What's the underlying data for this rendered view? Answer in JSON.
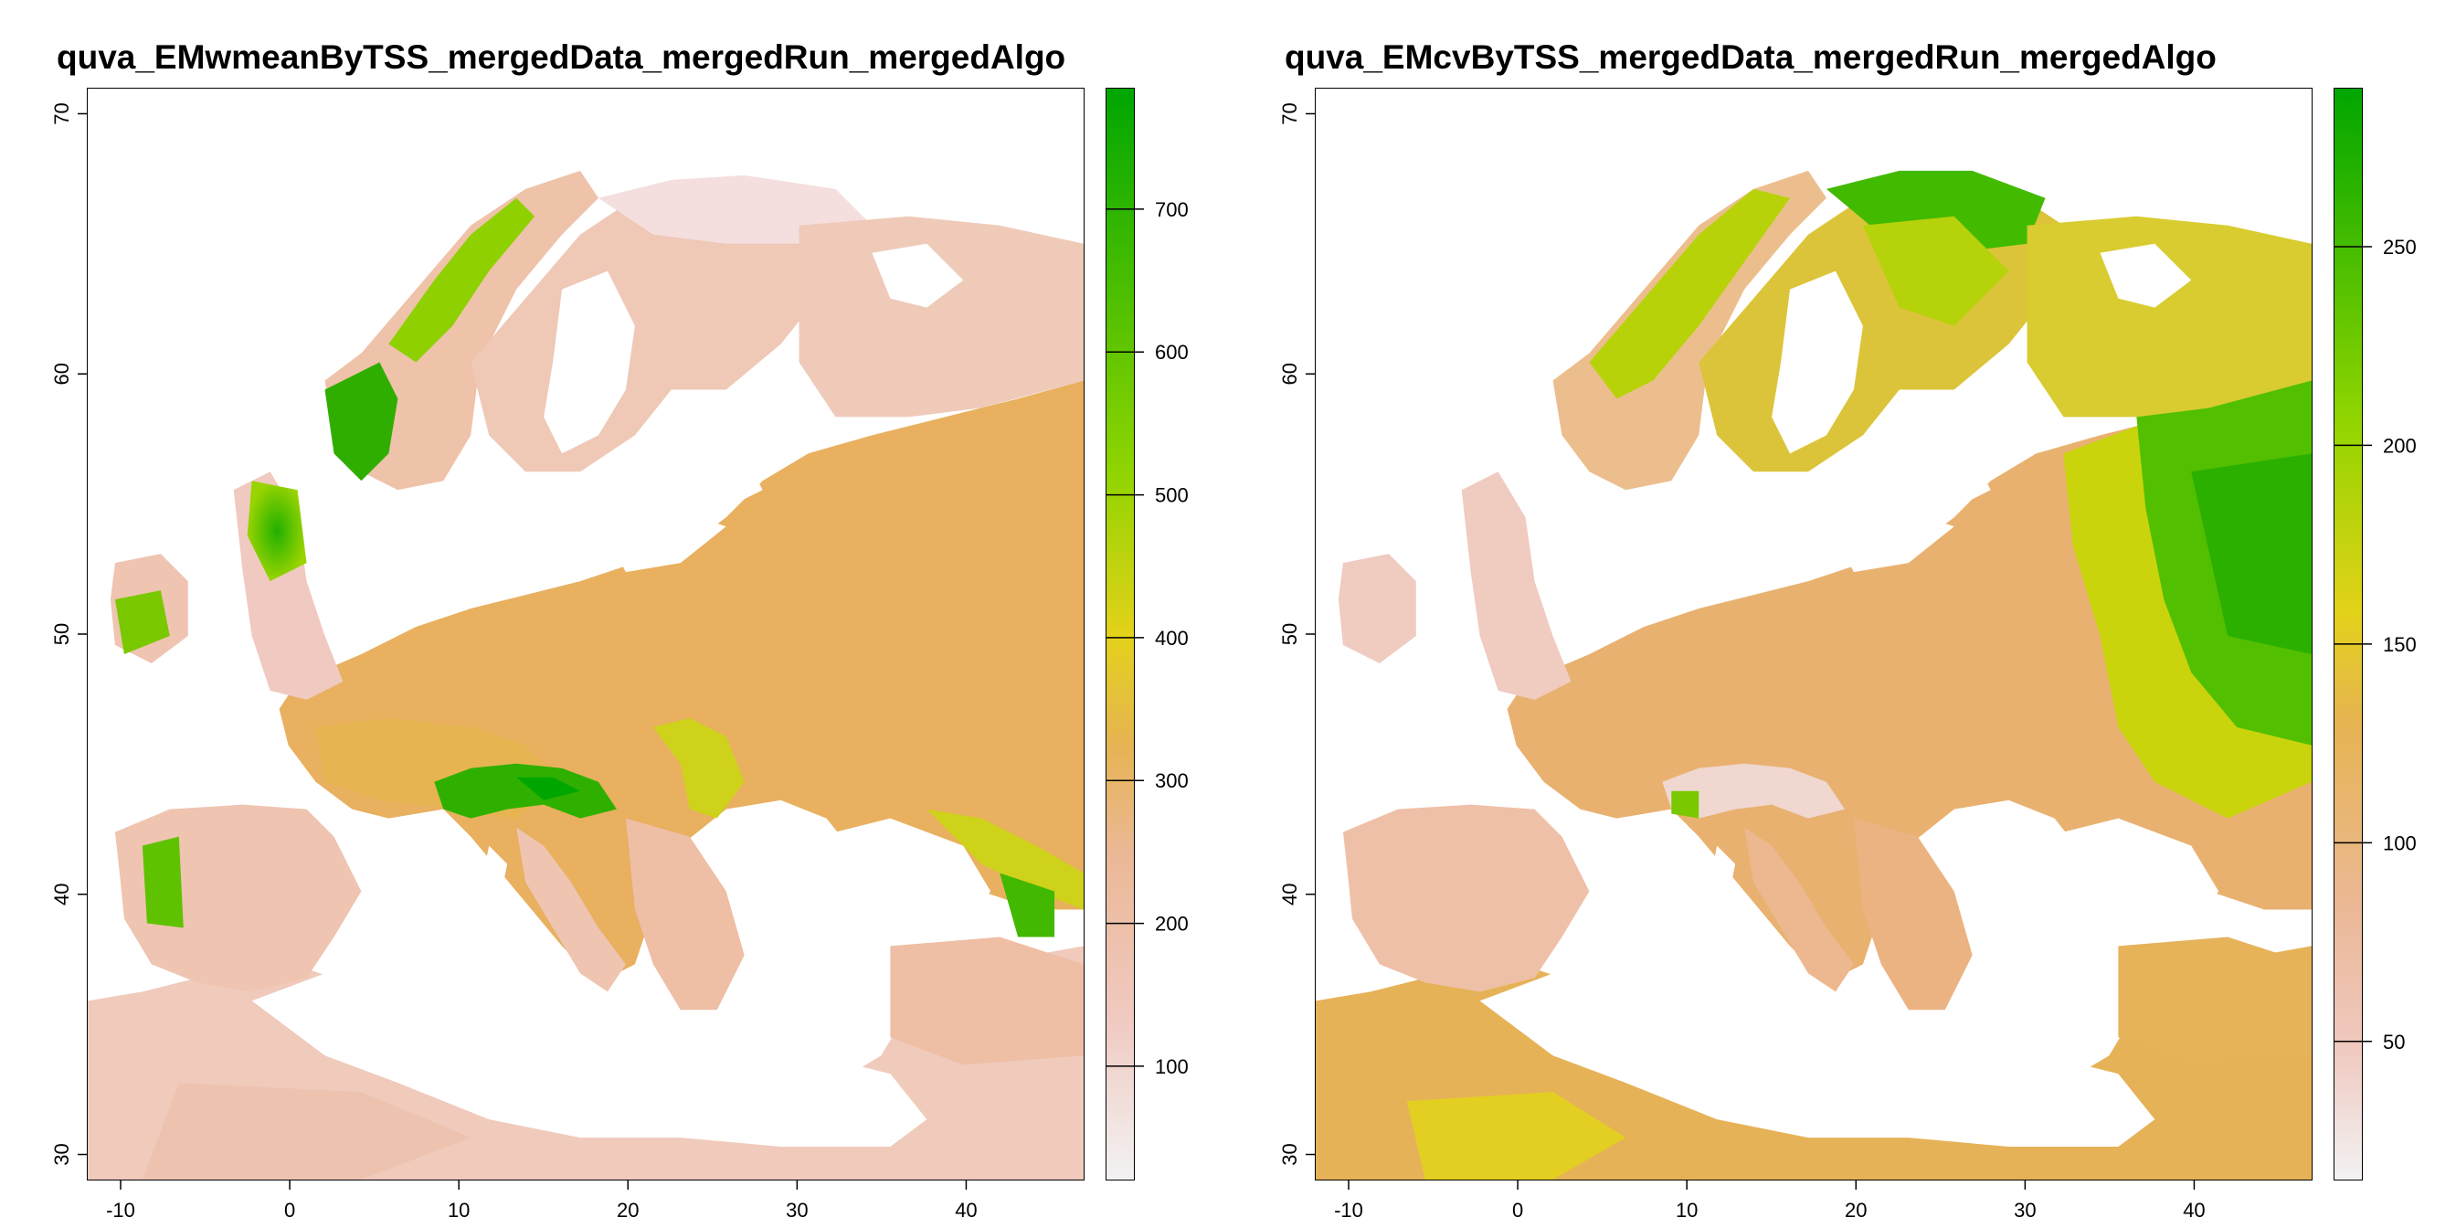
{
  "maps": [
    {
      "title": "quva_EMwmeanByTSS_mergedData_mergedRun_mergedAlgo",
      "x_axis": {
        "ticks": [
          -10,
          0,
          10,
          20,
          30,
          40
        ],
        "range": [
          -12,
          47
        ]
      },
      "y_axis": {
        "ticks": [
          30,
          40,
          50,
          60,
          70
        ],
        "range": [
          29,
          71
        ]
      },
      "legend": {
        "ticks": [
          100,
          200,
          300,
          400,
          500,
          600,
          700
        ],
        "range": [
          20,
          785
        ]
      },
      "color_scale": [
        "#f2f2f2",
        "#f0c9c0",
        "#ebb896",
        "#e6b451",
        "#e3d21a",
        "#8fd400",
        "#00a600"
      ],
      "land_fill": "#efb89e"
    },
    {
      "title": "quva_EMcvByTSS_mergedData_mergedRun_mergedAlgo",
      "x_axis": {
        "ticks": [
          -10,
          0,
          10,
          20,
          30,
          40
        ],
        "range": [
          -12,
          47
        ]
      },
      "y_axis": {
        "ticks": [
          30,
          40,
          50,
          60,
          70
        ],
        "range": [
          29,
          71
        ]
      },
      "legend": {
        "ticks": [
          50,
          100,
          150,
          200,
          250
        ],
        "range": [
          15,
          290
        ]
      },
      "color_scale": [
        "#f2f2f2",
        "#f0c9c0",
        "#ebb896",
        "#e6b451",
        "#e3d21a",
        "#8fd400",
        "#00a600"
      ],
      "land_fill": "#eab37f"
    }
  ]
}
